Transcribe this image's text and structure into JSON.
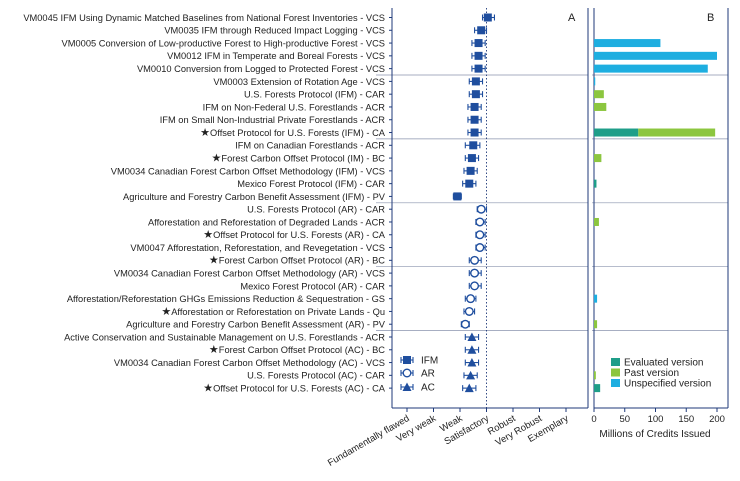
{
  "chart_data": [
    {
      "panel": "A",
      "type": "scatter",
      "xlabel": "",
      "x_categories": [
        "Fundamentally flawed",
        "Very weak",
        "Weak",
        "Satisfactory",
        "Robust",
        "Very Robust",
        "Exemplary"
      ],
      "reference_line": "Satisfactory",
      "legend": [
        {
          "name": "IFM",
          "marker": "filled-square"
        },
        {
          "name": "AR",
          "marker": "open-circle"
        },
        {
          "name": "AC",
          "marker": "filled-triangle"
        }
      ],
      "rows": [
        {
          "label": "VM0045 IFM Using Dynamic Matched Baselines from National Forest Inventories - VCS",
          "star": false,
          "type": "IFM",
          "score": 3.05,
          "low": 2.85,
          "high": 3.3
        },
        {
          "label": "VM0035 IFM through Reduced Impact Logging - VCS",
          "star": false,
          "type": "IFM",
          "score": 2.8,
          "low": 2.55,
          "high": 3.0
        },
        {
          "label": "VM0005 Conversion of Low-productive Forest to High-productive Forest - VCS",
          "star": false,
          "type": "IFM",
          "score": 2.7,
          "low": 2.45,
          "high": 2.95
        },
        {
          "label": "VM0012 IFM in Temperate and Boreal Forests - VCS",
          "star": false,
          "type": "IFM",
          "score": 2.7,
          "low": 2.45,
          "high": 2.95
        },
        {
          "label": "VM0010 Conversion from Logged to Protected Forest - VCS",
          "star": false,
          "type": "IFM",
          "score": 2.7,
          "low": 2.45,
          "high": 2.95
        },
        {
          "label": "VM0003 Extension of Rotation Age - VCS",
          "star": false,
          "type": "IFM",
          "score": 2.6,
          "low": 2.35,
          "high": 2.85
        },
        {
          "label": "U.S. Forests Protocol (IFM) - CAR",
          "star": false,
          "type": "IFM",
          "score": 2.6,
          "low": 2.35,
          "high": 2.85
        },
        {
          "label": "IFM on Non-Federal U.S. Forestlands - ACR",
          "star": false,
          "type": "IFM",
          "score": 2.55,
          "low": 2.3,
          "high": 2.8
        },
        {
          "label": "IFM on Small Non-Industrial Private Forestlands - ACR",
          "star": false,
          "type": "IFM",
          "score": 2.55,
          "low": 2.3,
          "high": 2.8
        },
        {
          "label": "Offset Protocol for U.S. Forests (IFM) - CA",
          "star": true,
          "type": "IFM",
          "score": 2.55,
          "low": 2.3,
          "high": 2.8
        },
        {
          "label": "IFM on Canadian Forestlands - ACR",
          "star": false,
          "type": "IFM",
          "score": 2.5,
          "low": 2.2,
          "high": 2.75
        },
        {
          "label": "Forest Carbon Offset Protocol (IM) - BC",
          "star": true,
          "type": "IFM",
          "score": 2.45,
          "low": 2.2,
          "high": 2.7
        },
        {
          "label": "VM0034 Canadian Forest Carbon Offset Methodology (IFM) - VCS",
          "star": false,
          "type": "IFM",
          "score": 2.4,
          "low": 2.15,
          "high": 2.65
        },
        {
          "label": "Mexico Forest Protocol (IFM) - CAR",
          "star": false,
          "type": "IFM",
          "score": 2.35,
          "low": 2.1,
          "high": 2.6
        },
        {
          "label": "Agriculture and Forestry Carbon Benefit Assessment (IFM) - PV",
          "star": false,
          "type": "IFM",
          "score": 1.9,
          "low": 1.75,
          "high": 2.05
        },
        {
          "label": "U.S. Forests Protocol (AR) - CAR",
          "star": false,
          "type": "AR",
          "score": 2.8,
          "low": 2.65,
          "high": 3.0
        },
        {
          "label": "Afforestation and Reforestation of Degraded Lands - ACR",
          "star": false,
          "type": "AR",
          "score": 2.75,
          "low": 2.6,
          "high": 2.95
        },
        {
          "label": "Offset Protocol for U.S. Forests (AR) - CA",
          "star": true,
          "type": "AR",
          "score": 2.75,
          "low": 2.6,
          "high": 2.95
        },
        {
          "label": "VM0047 Afforestation, Reforestation, and Revegetation - VCS",
          "star": false,
          "type": "AR",
          "score": 2.75,
          "low": 2.6,
          "high": 2.95
        },
        {
          "label": "Forest Carbon Offset Protocol (AR) - BC",
          "star": true,
          "type": "AR",
          "score": 2.55,
          "low": 2.35,
          "high": 2.8
        },
        {
          "label": "VM0034 Canadian Forest Carbon Offset Methodology (AR) - VCS",
          "star": false,
          "type": "AR",
          "score": 2.55,
          "low": 2.35,
          "high": 2.8
        },
        {
          "label": "Mexico Forest Protocol (AR) - CAR",
          "star": false,
          "type": "AR",
          "score": 2.55,
          "low": 2.35,
          "high": 2.8
        },
        {
          "label": "Afforestation/Reforestation GHGs Emissions Reduction & Sequestration - GS",
          "star": false,
          "type": "AR",
          "score": 2.4,
          "low": 2.2,
          "high": 2.6
        },
        {
          "label": "Afforestation or Reforestation on Private Lands - Qu",
          "star": true,
          "type": "AR",
          "score": 2.35,
          "low": 2.15,
          "high": 2.55
        },
        {
          "label": "Agriculture and Forestry Carbon Benefit Assessment (AR) - PV",
          "star": false,
          "type": "AR",
          "score": 2.2,
          "low": 2.05,
          "high": 2.35
        },
        {
          "label": "Active Conservation and Sustainable Management on U.S. Forestlands - ACR",
          "star": false,
          "type": "AC",
          "score": 2.45,
          "low": 2.2,
          "high": 2.7
        },
        {
          "label": "Forest Carbon Offset Protocol (AC) - BC",
          "star": true,
          "type": "AC",
          "score": 2.45,
          "low": 2.2,
          "high": 2.7
        },
        {
          "label": "VM0034 Canadian Forest Carbon Offset Methodology (AC) - VCS",
          "star": false,
          "type": "AC",
          "score": 2.45,
          "low": 2.2,
          "high": 2.7
        },
        {
          "label": "U.S. Forests Protocol (AC) - CAR",
          "star": false,
          "type": "AC",
          "score": 2.4,
          "low": 2.15,
          "high": 2.65
        },
        {
          "label": "Offset Protocol for U.S. Forests (AC) - CA",
          "star": true,
          "type": "AC",
          "score": 2.35,
          "low": 2.1,
          "high": 2.6
        }
      ]
    },
    {
      "panel": "B",
      "type": "bar",
      "orientation": "horizontal",
      "stacked": true,
      "xlabel": "Millions of Credits Issued",
      "xlim": [
        0,
        200
      ],
      "xticks": [
        0,
        50,
        100,
        150,
        200
      ],
      "legend": [
        {
          "name": "Evaluated version",
          "color": "#1f9e89"
        },
        {
          "name": "Past version",
          "color": "#8cc63f"
        },
        {
          "name": "Unspecified version",
          "color": "#1eaee0"
        }
      ],
      "values": [
        {
          "evaluated": 0,
          "past": 0,
          "unspecified": 0
        },
        {
          "evaluated": 0,
          "past": 0,
          "unspecified": 0
        },
        {
          "evaluated": 0,
          "past": 0,
          "unspecified": 108
        },
        {
          "evaluated": 0,
          "past": 0,
          "unspecified": 200
        },
        {
          "evaluated": 0,
          "past": 0,
          "unspecified": 185
        },
        {
          "evaluated": 0,
          "past": 0,
          "unspecified": 2
        },
        {
          "evaluated": 0,
          "past": 16,
          "unspecified": 0
        },
        {
          "evaluated": 0,
          "past": 20,
          "unspecified": 0
        },
        {
          "evaluated": 0,
          "past": 0,
          "unspecified": 0
        },
        {
          "evaluated": 72,
          "past": 125,
          "unspecified": 0
        },
        {
          "evaluated": 0,
          "past": 0,
          "unspecified": 0
        },
        {
          "evaluated": 0,
          "past": 12,
          "unspecified": 0
        },
        {
          "evaluated": 0,
          "past": 0,
          "unspecified": 0
        },
        {
          "evaluated": 4,
          "past": 0,
          "unspecified": 0
        },
        {
          "evaluated": 0,
          "past": 0,
          "unspecified": 0
        },
        {
          "evaluated": 0,
          "past": 0,
          "unspecified": 0
        },
        {
          "evaluated": 0,
          "past": 8,
          "unspecified": 0
        },
        {
          "evaluated": 0,
          "past": 0,
          "unspecified": 0
        },
        {
          "evaluated": 0,
          "past": 0,
          "unspecified": 0
        },
        {
          "evaluated": 0,
          "past": 0,
          "unspecified": 0
        },
        {
          "evaluated": 0,
          "past": 0,
          "unspecified": 0
        },
        {
          "evaluated": 0,
          "past": 0,
          "unspecified": 0
        },
        {
          "evaluated": 0,
          "past": 0,
          "unspecified": 5
        },
        {
          "evaluated": 0,
          "past": 0,
          "unspecified": 0
        },
        {
          "evaluated": 0,
          "past": 5,
          "unspecified": 0
        },
        {
          "evaluated": 0,
          "past": 0,
          "unspecified": 0
        },
        {
          "evaluated": 0,
          "past": 0,
          "unspecified": 0
        },
        {
          "evaluated": 0,
          "past": 0,
          "unspecified": 0
        },
        {
          "evaluated": 0,
          "past": 3,
          "unspecified": 0
        },
        {
          "evaluated": 10,
          "past": 0,
          "unspecified": 0
        }
      ]
    }
  ],
  "colors": {
    "marker": "#1f4e9e",
    "axis": "#1f3a7a",
    "separator": "#8a93ad",
    "evaluated": "#1f9e89",
    "past": "#8cc63f",
    "unspecified": "#1eaee0"
  }
}
